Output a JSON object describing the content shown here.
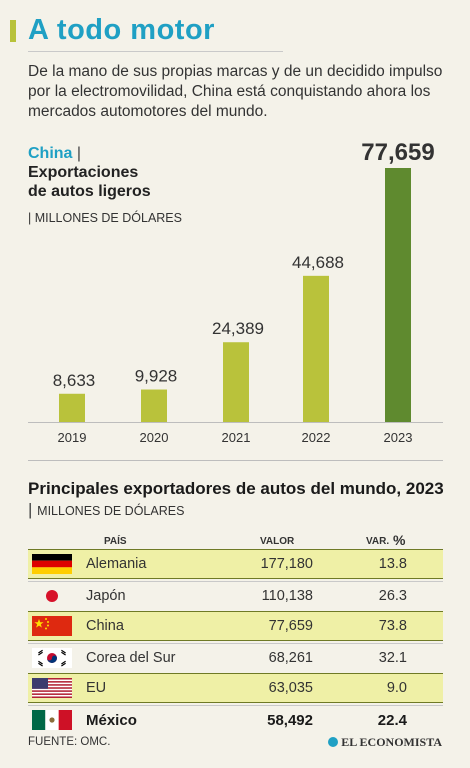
{
  "header": {
    "title": "A todo motor",
    "lead": "De la mano de sus propias marcas y de un decidido impulso por la electromovilidad, China está conquistando ahora los mercados automotores del mundo."
  },
  "chart_section": {
    "country": "China",
    "separator": "|",
    "subtitle_line1": "Exportaciones",
    "subtitle_line2": "de autos ligeros",
    "unit": "| MILLONES DE DÓLARES"
  },
  "chart_data": {
    "type": "bar",
    "categories": [
      "2019",
      "2020",
      "2021",
      "2022",
      "2023"
    ],
    "values": [
      8633,
      9928,
      24389,
      44688,
      77659
    ],
    "value_labels": [
      "8,633",
      "9,928",
      "24,389",
      "44,688",
      "77,659"
    ],
    "title": "China | Exportaciones de autos ligeros",
    "ylabel": "MILLONES DE DÓLARES",
    "ylim": [
      0,
      77659
    ],
    "grid": false,
    "colors": {
      "bar": "#b9c23b",
      "highlight_bar": "#5f8a2f"
    }
  },
  "table": {
    "title": "Principales exportadores de autos del mundo, 2023",
    "separator": "|",
    "unit": "MILLONES DE DÓLARES",
    "headers": {
      "country": "PAÍS",
      "value": "VALOR",
      "var": "VAR.",
      "pct": "%"
    },
    "rows": [
      {
        "flag": "germany-flag-icon",
        "name": "Alemania",
        "value": "177,180",
        "var": "13.8",
        "highlight": true
      },
      {
        "flag": "japan-flag-icon",
        "name": "Japón",
        "value": "110,138",
        "var": "26.3",
        "highlight": false
      },
      {
        "flag": "china-flag-icon",
        "name": "China",
        "value": "77,659",
        "var": "73.8",
        "highlight": true
      },
      {
        "flag": "south-korea-flag-icon",
        "name": "Corea del Sur",
        "value": "68,261",
        "var": "32.1",
        "highlight": false
      },
      {
        "flag": "usa-flag-icon",
        "name": "EU",
        "value": "63,035",
        "var": "9.0",
        "highlight": true
      },
      {
        "flag": "mexico-flag-icon",
        "name": "México",
        "value": "58,492",
        "var": "22.4",
        "highlight": false
      }
    ]
  },
  "footer": {
    "source": "FUENTE: OMC.",
    "brand": "EL ECONOMISTA"
  }
}
